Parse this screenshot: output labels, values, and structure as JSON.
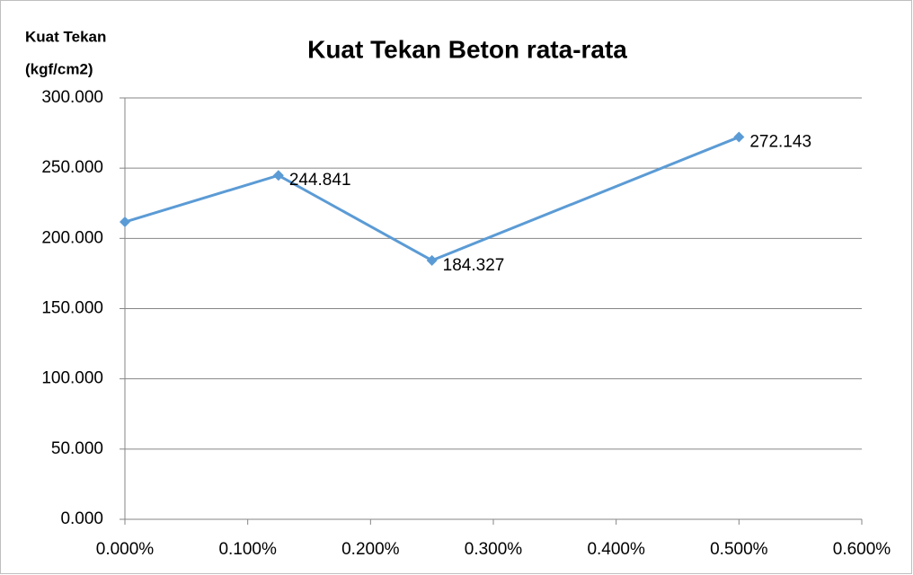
{
  "chart_data": {
    "type": "line",
    "title": "Kuat Tekan Beton rata-rata",
    "ylabel": [
      "Kuat Tekan",
      "(kgf/cm2)"
    ],
    "x": [
      0,
      0.125,
      0.25,
      0.5
    ],
    "series": [
      {
        "color": "#5b9bd5",
        "values": [
          211.7,
          244.841,
          184.327,
          272.143
        ],
        "value_labels": [
          null,
          "244.841",
          "184.327",
          "272.143"
        ]
      }
    ],
    "xlim": [
      0,
      0.6
    ],
    "xticks": [
      {
        "value": 0,
        "label": "0.000%"
      },
      {
        "value": 0.1,
        "label": "0.100%"
      },
      {
        "value": 0.2,
        "label": "0.200%"
      },
      {
        "value": 0.3,
        "label": "0.300%"
      },
      {
        "value": 0.4,
        "label": "0.400%"
      },
      {
        "value": 0.5,
        "label": "0.500%"
      },
      {
        "value": 0.6,
        "label": "0.600%"
      }
    ],
    "ylim": [
      0,
      300
    ],
    "yticks": [
      {
        "value": 0,
        "label": "0.000"
      },
      {
        "value": 50,
        "label": "50.000"
      },
      {
        "value": 100,
        "label": "100.000"
      },
      {
        "value": 150,
        "label": "150.000"
      },
      {
        "value": 200,
        "label": "200.000"
      },
      {
        "value": 250,
        "label": "250.000"
      },
      {
        "value": 300,
        "label": "300.000"
      }
    ],
    "grid": true
  }
}
